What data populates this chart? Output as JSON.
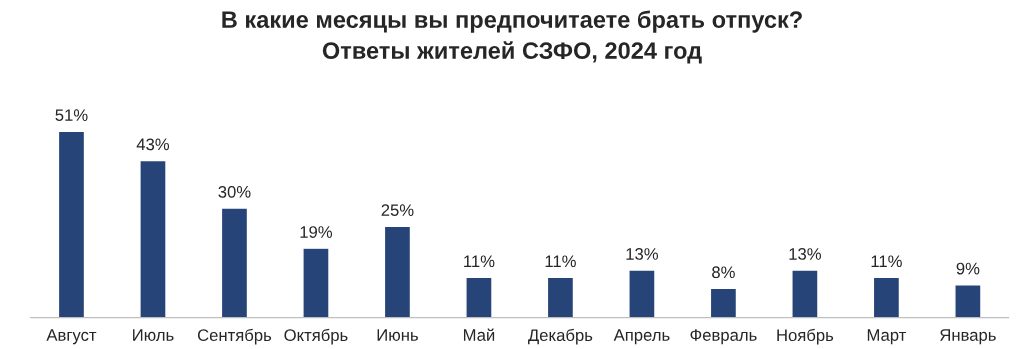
{
  "chart_data": {
    "type": "bar",
    "title": "В какие месяцы вы предпочитаете брать отпуск?\nОтветы жителей СЗФО, 2024 год",
    "categories": [
      "Август",
      "Июль",
      "Сентябрь",
      "Октябрь",
      "Июнь",
      "Май",
      "Декабрь",
      "Апрель",
      "Февраль",
      "Ноябрь",
      "Март",
      "Январь"
    ],
    "values": [
      51,
      43,
      30,
      19,
      25,
      11,
      11,
      13,
      8,
      13,
      11,
      9
    ],
    "value_labels": [
      "51%",
      "43%",
      "30%",
      "19%",
      "25%",
      "11%",
      "11%",
      "13%",
      "8%",
      "13%",
      "11%",
      "9%"
    ],
    "color": "#264478",
    "grid": false
  }
}
